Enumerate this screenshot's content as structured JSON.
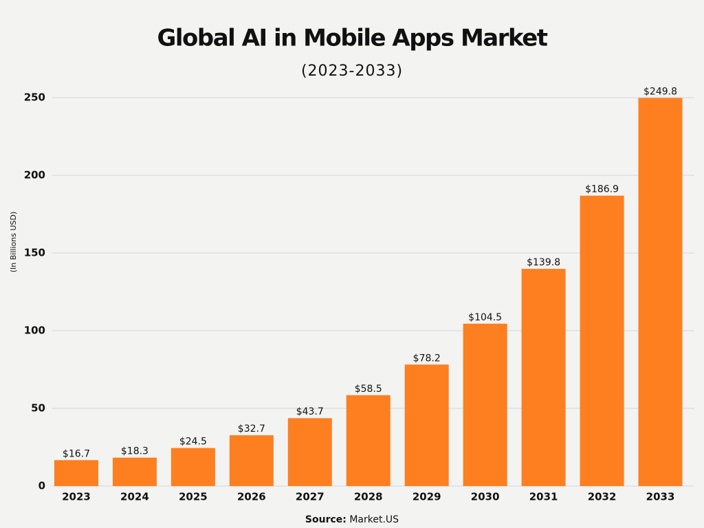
{
  "chart_data": {
    "type": "bar",
    "title": "Global AI in Mobile Apps Market",
    "subtitle": "(2023-2033)",
    "y_label": "(In Billions USD)",
    "categories": [
      "2023",
      "2024",
      "2025",
      "2026",
      "2027",
      "2028",
      "2029",
      "2030",
      "2031",
      "2032",
      "2033"
    ],
    "values": [
      16.7,
      18.3,
      24.5,
      32.7,
      43.7,
      58.5,
      78.2,
      104.5,
      139.8,
      186.9,
      249.8
    ],
    "value_labels": [
      "$16.7",
      "$18.3",
      "$24.5",
      "$32.7",
      "$43.7",
      "$58.5",
      "$78.2",
      "$104.5",
      "$139.8",
      "$186.9",
      "$249.8"
    ],
    "color": "#fd7f20",
    "ylim": [
      0,
      250
    ],
    "yticks": [
      0,
      50,
      100,
      150,
      200,
      250
    ],
    "grid": true,
    "source_label": "Source:",
    "source": "Market.US"
  }
}
